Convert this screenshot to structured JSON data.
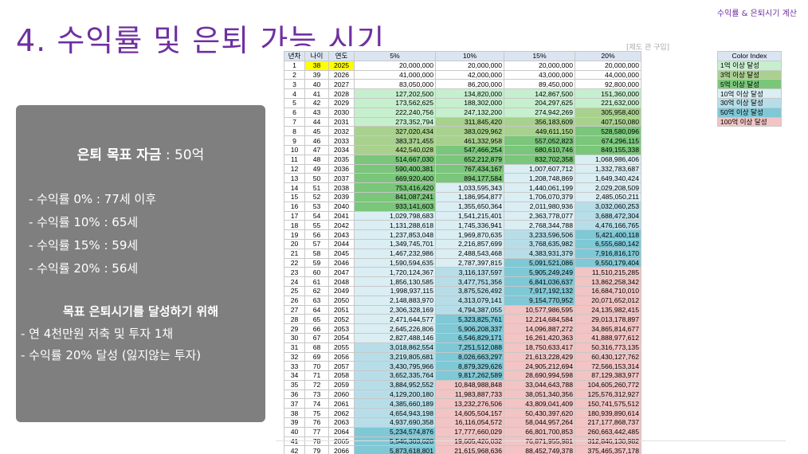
{
  "header": {
    "top_right": "수익률 & 은퇴시기 계산",
    "title": "4. 수익률 및 은퇴 가능 시기"
  },
  "panel": {
    "goal_label": "은퇴 목표 자금",
    "goal_value": " : 50억",
    "rates": [
      "- 수익률   0% : 77세 이후",
      "- 수익률 10% : 65세",
      "- 수익률 15% : 59세",
      "- 수익률 20% : 56세"
    ],
    "plan_title": "목표 은퇴시기를 달성하기 위해",
    "plan": [
      "- 연 4천만원 저축 및 투자 1채",
      "- 수익률 20% 달성 (잃지않는 투자)"
    ]
  },
  "overlap_text": "[제도 관 구입]",
  "table": {
    "headers": [
      "년차",
      "나이",
      "연도",
      "5%",
      "10%",
      "15%",
      "20%"
    ],
    "rows": [
      [
        "1",
        "38",
        "2025",
        "20,000,000",
        "20,000,000",
        "20,000,000",
        "20,000,000"
      ],
      [
        "2",
        "39",
        "2026",
        "41,000,000",
        "42,000,000",
        "43,000,000",
        "44,000,000"
      ],
      [
        "3",
        "40",
        "2027",
        "83,050,000",
        "86,200,000",
        "89,450,000",
        "92,800,000"
      ],
      [
        "4",
        "41",
        "2028",
        "127,202,500",
        "134,820,000",
        "142,867,500",
        "151,360,000"
      ],
      [
        "5",
        "42",
        "2029",
        "173,562,625",
        "188,302,000",
        "204,297,625",
        "221,632,000"
      ],
      [
        "6",
        "43",
        "2030",
        "222,240,756",
        "247,132,200",
        "274,942,269",
        "305,958,400"
      ],
      [
        "7",
        "44",
        "2031",
        "273,352,794",
        "311,845,420",
        "356,183,609",
        "407,150,080"
      ],
      [
        "8",
        "45",
        "2032",
        "327,020,434",
        "383,029,962",
        "449,611,150",
        "528,580,096"
      ],
      [
        "9",
        "46",
        "2033",
        "383,371,455",
        "461,332,958",
        "557,052,823",
        "674,296,115"
      ],
      [
        "10",
        "47",
        "2034",
        "442,540,028",
        "547,466,254",
        "680,610,746",
        "849,155,338"
      ],
      [
        "11",
        "48",
        "2035",
        "514,667,030",
        "652,212,879",
        "832,702,358",
        "1,068,986,406"
      ],
      [
        "12",
        "49",
        "2036",
        "590,400,381",
        "767,434,167",
        "1,007,607,712",
        "1,332,783,687"
      ],
      [
        "13",
        "50",
        "2037",
        "669,920,400",
        "894,177,584",
        "1,208,748,869",
        "1,649,340,424"
      ],
      [
        "14",
        "51",
        "2038",
        "753,416,420",
        "1,033,595,343",
        "1,440,061,199",
        "2,029,208,509"
      ],
      [
        "15",
        "52",
        "2039",
        "841,087,241",
        "1,186,954,877",
        "1,706,070,379",
        "2,485,050,211"
      ],
      [
        "16",
        "53",
        "2040",
        "933,141,603",
        "1,355,650,364",
        "2,011,980,936",
        "3,032,060,253"
      ],
      [
        "17",
        "54",
        "2041",
        "1,029,798,683",
        "1,541,215,401",
        "2,363,778,077",
        "3,688,472,304"
      ],
      [
        "18",
        "55",
        "2042",
        "1,131,288,618",
        "1,745,336,941",
        "2,768,344,788",
        "4,476,166,765"
      ],
      [
        "19",
        "56",
        "2043",
        "1,237,853,048",
        "1,969,870,635",
        "3,233,596,506",
        "5,421,400,118"
      ],
      [
        "20",
        "57",
        "2044",
        "1,349,745,701",
        "2,216,857,699",
        "3,768,635,982",
        "6,555,680,142"
      ],
      [
        "21",
        "58",
        "2045",
        "1,467,232,986",
        "2,488,543,468",
        "4,383,931,379",
        "7,916,816,170"
      ],
      [
        "22",
        "59",
        "2046",
        "1,590,594,635",
        "2,787,397,815",
        "5,091,521,086",
        "9,550,179,404"
      ],
      [
        "23",
        "60",
        "2047",
        "1,720,124,367",
        "3,116,137,597",
        "5,905,249,249",
        "11,510,215,285"
      ],
      [
        "24",
        "61",
        "2048",
        "1,856,130,585",
        "3,477,751,356",
        "6,841,036,637",
        "13,862,258,342"
      ],
      [
        "25",
        "62",
        "2049",
        "1,998,937,115",
        "3,875,526,492",
        "7,917,192,132",
        "16,684,710,010"
      ],
      [
        "26",
        "63",
        "2050",
        "2,148,883,970",
        "4,313,079,141",
        "9,154,770,952",
        "20,071,652,012"
      ],
      [
        "27",
        "64",
        "2051",
        "2,306,328,169",
        "4,794,387,055",
        "10,577,986,595",
        "24,135,982,415"
      ],
      [
        "28",
        "65",
        "2052",
        "2,471,644,577",
        "5,323,825,761",
        "12,214,684,584",
        "29,013,178,897"
      ],
      [
        "29",
        "66",
        "2053",
        "2,645,226,806",
        "5,906,208,337",
        "14,096,887,272",
        "34,865,814,677"
      ],
      [
        "30",
        "67",
        "2054",
        "2,827,488,146",
        "6,546,829,171",
        "16,261,420,363",
        "41,888,977,612"
      ],
      [
        "31",
        "68",
        "2055",
        "3,018,862,554",
        "7,251,512,088",
        "18,750,633,417",
        "50,316,773,135"
      ],
      [
        "32",
        "69",
        "2056",
        "3,219,805,681",
        "8,026,663,297",
        "21,613,228,429",
        "60,430,127,762"
      ],
      [
        "33",
        "70",
        "2057",
        "3,430,795,966",
        "8,879,329,626",
        "24,905,212,694",
        "72,566,153,314"
      ],
      [
        "34",
        "71",
        "2058",
        "3,652,335,764",
        "9,817,262,589",
        "28,690,994,598",
        "87,129,383,977"
      ],
      [
        "35",
        "72",
        "2059",
        "3,884,952,552",
        "10,848,988,848",
        "33,044,643,788",
        "104,605,260,772"
      ],
      [
        "36",
        "73",
        "2060",
        "4,129,200,180",
        "11,983,887,733",
        "38,051,340,356",
        "125,576,312,927"
      ],
      [
        "37",
        "74",
        "2061",
        "4,385,660,189",
        "13,232,276,506",
        "43,809,041,409",
        "150,741,575,512"
      ],
      [
        "38",
        "75",
        "2062",
        "4,654,943,198",
        "14,605,504,157",
        "50,430,397,620",
        "180,939,890,614"
      ],
      [
        "39",
        "76",
        "2063",
        "4,937,690,358",
        "16,116,054,572",
        "58,044,957,264",
        "217,177,868,737"
      ],
      [
        "40",
        "77",
        "2064",
        "5,234,574,876",
        "17,777,660,029",
        "66,801,700,853",
        "260,663,442,485"
      ],
      [
        "41",
        "78",
        "2065",
        "5,546,303,620",
        "19,605,426,032",
        "76,871,955,981",
        "312,846,130,982"
      ],
      [
        "42",
        "79",
        "2066",
        "5,873,618,801",
        "21,615,968,636",
        "88,452,749,378",
        "375,465,357,178"
      ]
    ]
  },
  "legend": {
    "header": "Color Index",
    "items": [
      {
        "label": "1억 이상 달성",
        "color": "#c6efce"
      },
      {
        "label": "3억 이상 달성",
        "color": "#a9d18e"
      },
      {
        "label": "5억 이상 달성",
        "color": "#7ac67a"
      },
      {
        "label": "10억 이상 달성",
        "color": "#daeef3"
      },
      {
        "label": "30억 이상 달성",
        "color": "#b7dee8"
      },
      {
        "label": "50억 이상 달성",
        "color": "#7fc8d6"
      },
      {
        "label": "100억 이상 달성",
        "color": "#f2c4c4"
      }
    ]
  },
  "colors": {
    "title": "#7030a0",
    "panel": "#7f7f7f",
    "highlight": "#ffff00"
  }
}
